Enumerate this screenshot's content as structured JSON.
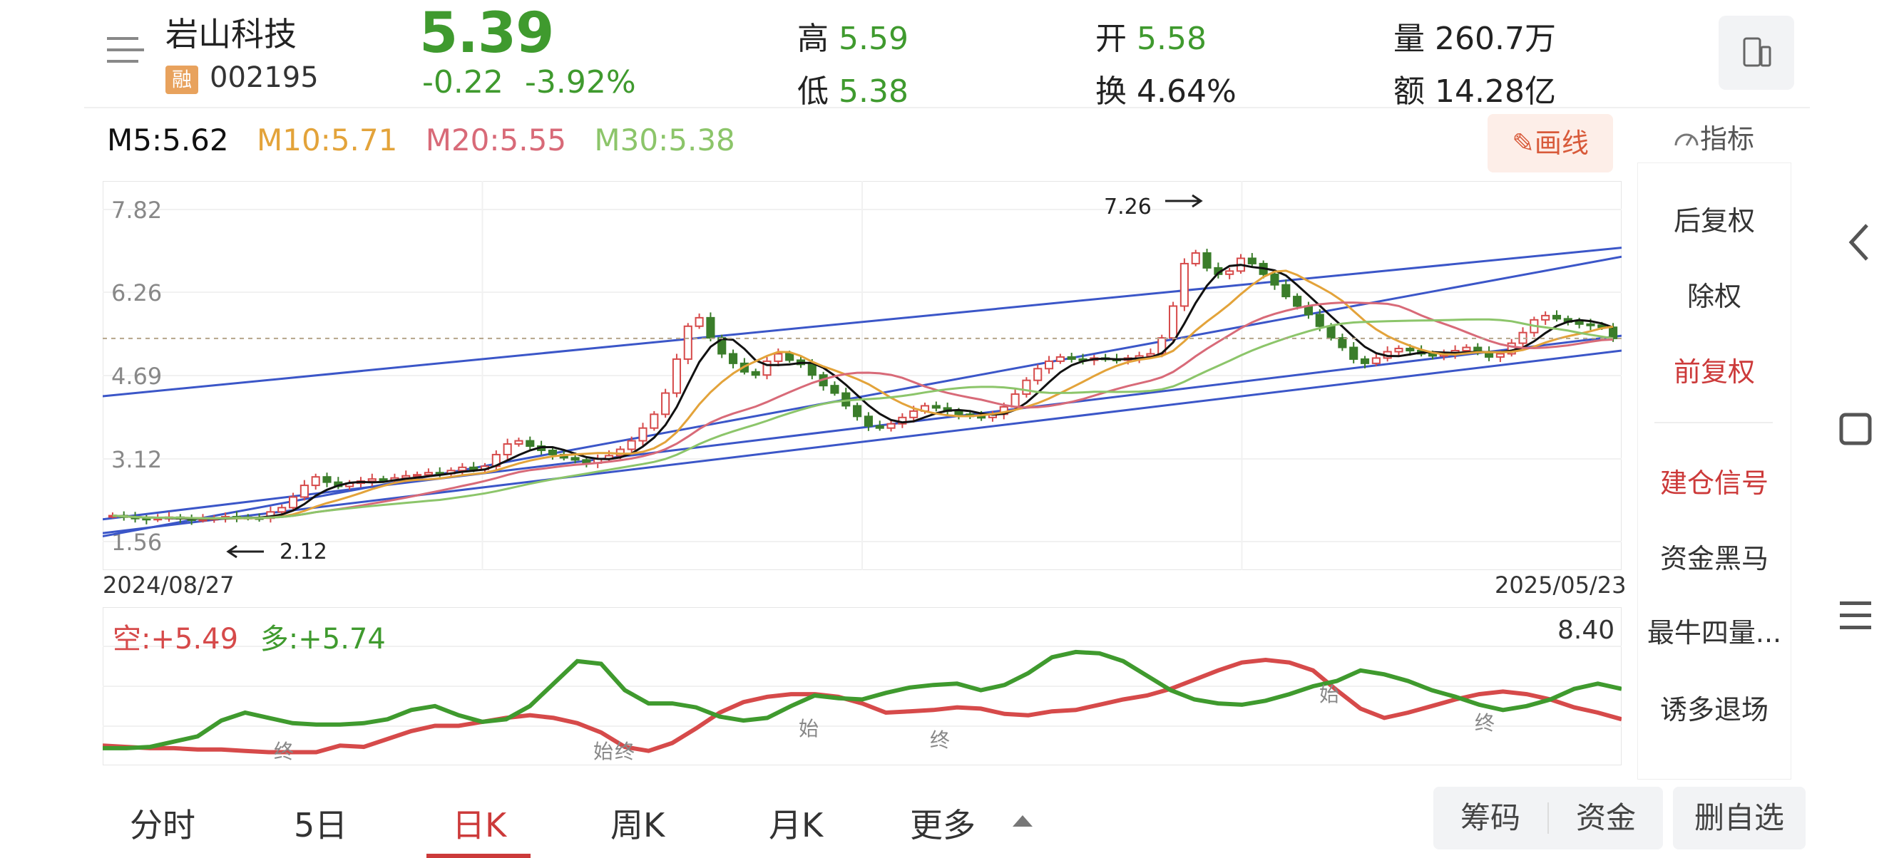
{
  "header": {
    "stock_name": "岩山科技",
    "badge": "融",
    "stock_code": "002195",
    "price": "5.39",
    "change": "-0.22",
    "change_pct": "-3.92%",
    "high_label": "高",
    "high": "5.59",
    "low_label": "低",
    "low": "5.38",
    "open_label": "开",
    "open": "5.58",
    "turnover_label": "换",
    "turnover": "4.64%",
    "volume_label": "量",
    "volume": "260.7万",
    "amount_label": "额",
    "amount": "14.28亿"
  },
  "ma": {
    "m5": "M5:5.62",
    "m10": "M10:5.71",
    "m20": "M20:5.55",
    "m30": "M30:5.38"
  },
  "toolbar": {
    "draw": "画线",
    "indicator": "指标"
  },
  "side_menu": [
    "后复权",
    "除权",
    "前复权",
    "建仓信号",
    "资金黑马",
    "最牛四量...",
    "诱多退场"
  ],
  "chart": {
    "y_ticks": [
      "7.82",
      "6.26",
      "4.69",
      "3.12",
      "1.56"
    ],
    "start_date": "2024/08/27",
    "end_date": "2025/05/23",
    "annot_high": "7.26",
    "annot_low": "2.12"
  },
  "oscillator": {
    "short_label": "空:+5.49",
    "long_label": "多:+5.74",
    "max": "8.40",
    "marks": [
      "终",
      "始",
      "终",
      "始",
      "终",
      "始",
      "终"
    ]
  },
  "tabs": {
    "minute": "分时",
    "five_day": "5日",
    "day_k": "日K",
    "week_k": "周K",
    "month_k": "月K",
    "more": "更多"
  },
  "actions": {
    "chips": "筹码",
    "capital": "资金",
    "remove_watch": "删自选"
  },
  "colors": {
    "up": "#d64a4a",
    "down": "#3f9a2e",
    "ma5": "#111111",
    "ma10": "#e3a33a",
    "ma20": "#d86a78",
    "ma30": "#8cc56a",
    "channel": "#3b56c8"
  },
  "chart_data": {
    "type": "candlestick",
    "title": "",
    "ylim": [
      1.56,
      7.82
    ],
    "x_start": "2024/08/27",
    "x_end": "2025/05/23",
    "close_series": [
      2.05,
      2.02,
      2.0,
      1.98,
      2.0,
      2.02,
      1.99,
      1.97,
      1.98,
      2.0,
      2.03,
      2.02,
      2.01,
      2.0,
      2.12,
      2.2,
      2.4,
      2.62,
      2.78,
      2.68,
      2.6,
      2.66,
      2.7,
      2.74,
      2.72,
      2.76,
      2.8,
      2.82,
      2.86,
      2.84,
      2.9,
      2.96,
      2.92,
      2.98,
      3.2,
      3.4,
      3.46,
      3.36,
      3.28,
      3.2,
      3.14,
      3.1,
      3.04,
      3.12,
      3.18,
      3.3,
      3.46,
      3.7,
      3.96,
      4.36,
      5.0,
      5.62,
      5.78,
      5.4,
      5.1,
      4.92,
      4.76,
      4.7,
      4.96,
      5.1,
      4.98,
      4.9,
      4.7,
      4.5,
      4.36,
      4.12,
      3.92,
      3.74,
      3.7,
      3.78,
      3.9,
      4.02,
      4.12,
      4.08,
      4.02,
      3.96,
      3.92,
      3.9,
      3.96,
      4.1,
      4.34,
      4.6,
      4.82,
      4.96,
      5.04,
      5.0,
      4.98,
      5.02,
      5.0,
      4.98,
      5.02,
      5.06,
      5.1,
      5.4,
      6.0,
      6.8,
      7.0,
      6.72,
      6.6,
      6.66,
      6.9,
      6.8,
      6.6,
      6.4,
      6.18,
      6.0,
      5.84,
      5.62,
      5.4,
      5.22,
      5.0,
      4.92,
      5.02,
      5.14,
      5.2,
      5.16,
      5.1,
      5.06,
      5.1,
      5.16,
      5.22,
      5.14,
      5.04,
      5.1,
      5.3,
      5.5,
      5.74,
      5.82,
      5.76,
      5.7,
      5.66,
      5.64,
      5.6,
      5.39
    ],
    "ma_labels": [
      "M5:5.62",
      "M10:5.71",
      "M20:5.55",
      "M30:5.38"
    ],
    "annotations": [
      {
        "text": "7.26",
        "value": 7.26
      },
      {
        "text": "2.12",
        "value": 2.12
      }
    ]
  }
}
